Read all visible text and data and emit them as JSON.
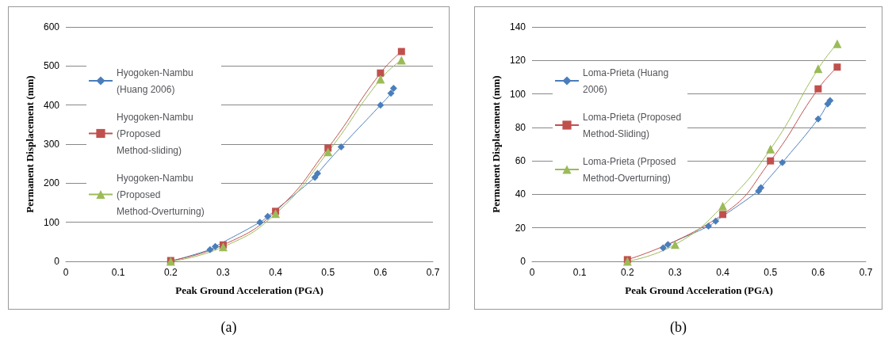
{
  "chart_data": [
    {
      "type": "line",
      "xlabel": "Peak Ground Acceleration (PGA)",
      "ylabel": "Permanent Displacement (mm)",
      "xlim": [
        0,
        0.7
      ],
      "xticks": [
        0,
        0.1,
        0.2,
        0.3,
        0.4,
        0.5,
        0.6,
        0.7
      ],
      "ylim": [
        0,
        600
      ],
      "yticks": [
        0,
        100,
        200,
        300,
        400,
        500,
        600
      ],
      "grid": "y",
      "legend": "left",
      "annotations": [
        "(a)"
      ],
      "series": [
        {
          "name": "Hyogoken-Nambu (Huang 2006)",
          "color": "#4a7ebb",
          "marker": "diamond",
          "x": [
            0.2,
            0.275,
            0.285,
            0.37,
            0.385,
            0.475,
            0.48,
            0.525,
            0.6,
            0.62,
            0.625
          ],
          "values": [
            0,
            30,
            38,
            100,
            115,
            215,
            225,
            293,
            400,
            430,
            443
          ]
        },
        {
          "name": "Hyogoken-Nambu (Proposed Method-sliding)",
          "color": "#c0504d",
          "marker": "square",
          "x": [
            0.2,
            0.3,
            0.4,
            0.5,
            0.6,
            0.64
          ],
          "values": [
            2,
            42,
            128,
            290,
            482,
            537
          ]
        },
        {
          "name": "Hyogoken-Nambu (Proposed Method-Overturning)",
          "color": "#9bbb59",
          "marker": "triangle",
          "x": [
            0.2,
            0.3,
            0.4,
            0.5,
            0.6,
            0.64
          ],
          "values": [
            0,
            37,
            122,
            280,
            466,
            515
          ]
        }
      ]
    },
    {
      "type": "line",
      "xlabel": "Peak Ground Acceleration (PGA)",
      "ylabel": "Permanent Displacement (mm)",
      "xlim": [
        0,
        0.7
      ],
      "xticks": [
        0,
        0.1,
        0.2,
        0.3,
        0.4,
        0.5,
        0.6,
        0.7
      ],
      "ylim": [
        0,
        140
      ],
      "yticks": [
        0,
        20,
        40,
        60,
        80,
        100,
        120,
        140
      ],
      "grid": "y",
      "legend": "left",
      "annotations": [
        "(b)"
      ],
      "series": [
        {
          "name": "Loma-Prieta (Huang 2006)",
          "color": "#4a7ebb",
          "marker": "diamond",
          "x": [
            0.275,
            0.285,
            0.37,
            0.385,
            0.475,
            0.48,
            0.525,
            0.6,
            0.62,
            0.625
          ],
          "values": [
            8,
            10,
            21,
            24,
            42,
            44,
            59,
            85,
            94,
            96
          ]
        },
        {
          "name": "Loma-Prieta (Proposed Method-Sliding)",
          "color": "#c0504d",
          "marker": "square",
          "x": [
            0.2,
            0.4,
            0.5,
            0.6,
            0.64
          ],
          "values": [
            1,
            28,
            60,
            103,
            116
          ]
        },
        {
          "name": "Loma-Prieta (Prposed Method-Overturning)",
          "color": "#9bbb59",
          "marker": "triangle",
          "x": [
            0.2,
            0.3,
            0.4,
            0.5,
            0.6,
            0.64
          ],
          "values": [
            0,
            10,
            33,
            67,
            115,
            130
          ]
        }
      ]
    }
  ]
}
